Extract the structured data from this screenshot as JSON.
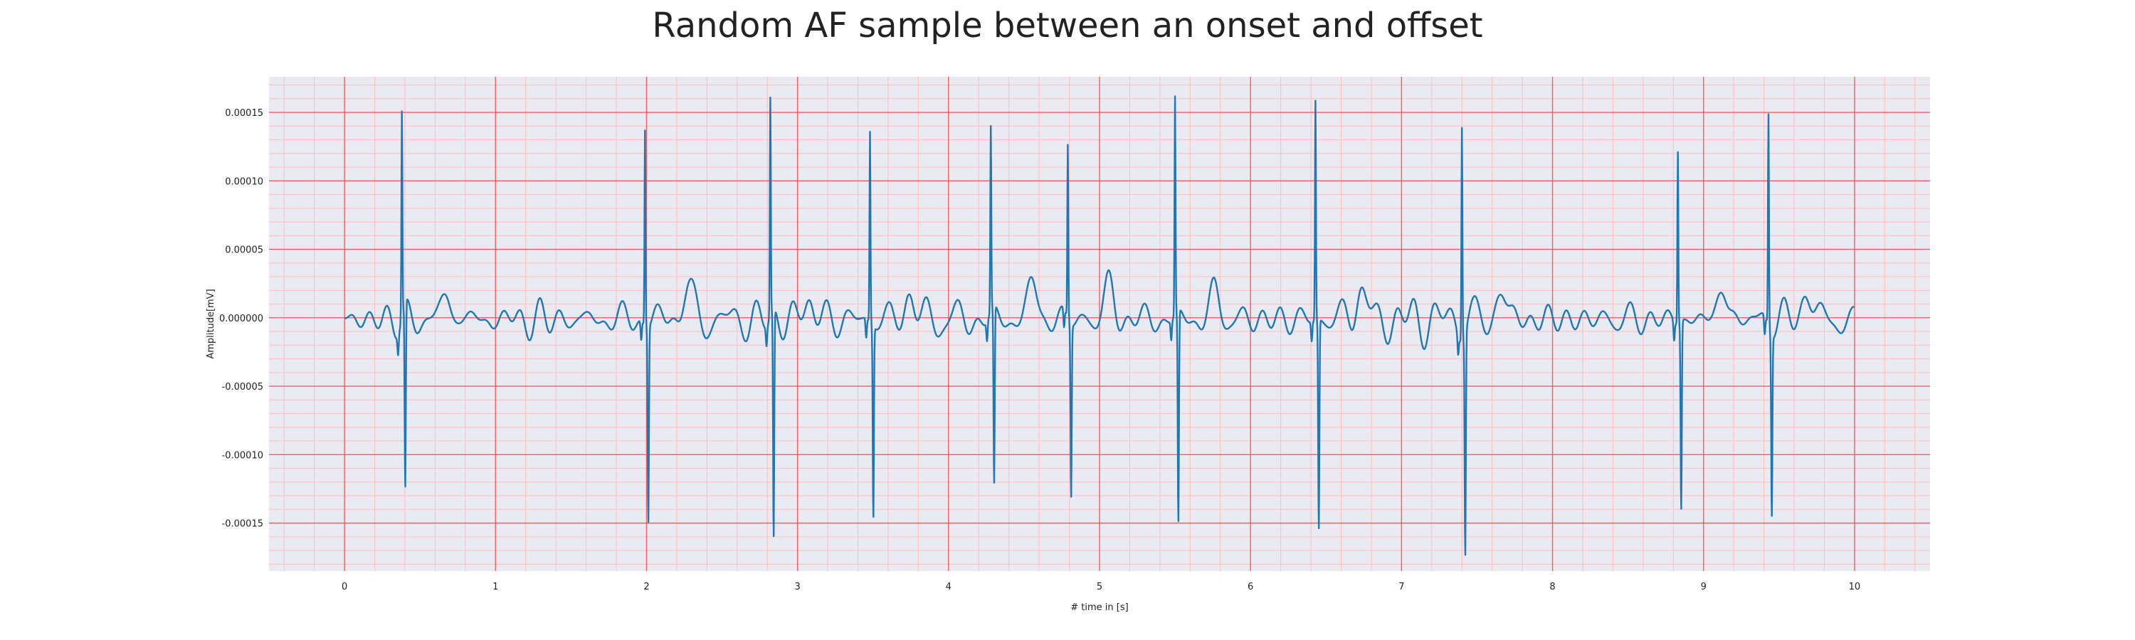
{
  "chart_data": {
    "type": "line",
    "title": "Random AF sample between an onset and offset",
    "xlabel": "# time in [s]",
    "ylabel": "Amplitude[mV]",
    "xlim": [
      -0.5,
      10.5
    ],
    "ylim": [
      -0.000185,
      0.000176
    ],
    "x_ticks": [
      0,
      1,
      2,
      3,
      4,
      5,
      6,
      7,
      8,
      9,
      10
    ],
    "x_tick_labels": [
      "0",
      "1",
      "2",
      "3",
      "4",
      "5",
      "6",
      "7",
      "8",
      "9",
      "10"
    ],
    "y_ticks": [
      0.00015,
      0.0001,
      5e-05,
      0,
      -5e-05,
      -0.0001,
      -0.00015
    ],
    "y_tick_labels": [
      "0.00015",
      "0.00010",
      "0.00005",
      "0.000000",
      "-0.00005",
      "-0.00010",
      "-0.00015"
    ],
    "grid": true,
    "grid_style": "ecg-paper (major and minor red gridlines)",
    "colors": {
      "line": "#1f77b4",
      "background": "#eaeaf2",
      "major_grid": "#ff5a5a",
      "minor_grid": "#ffbcbc"
    },
    "x_range": [
      0.0,
      10.0
    ],
    "beat_peaks": [
      {
        "t": 0.38,
        "max": 0.00015,
        "min": -0.000137
      },
      {
        "t": 1.99,
        "max": 0.000143,
        "min": -0.000143
      },
      {
        "t": 2.82,
        "max": 0.000159,
        "min": -0.000168
      },
      {
        "t": 3.48,
        "max": 0.000139,
        "min": -0.00014
      },
      {
        "t": 4.28,
        "max": 0.000135,
        "min": -0.000131
      },
      {
        "t": 4.79,
        "max": 0.000127,
        "min": -0.000126
      },
      {
        "t": 5.5,
        "max": 0.000159,
        "min": -0.000156
      },
      {
        "t": 6.43,
        "max": 0.00016,
        "min": -0.000154
      },
      {
        "t": 7.4,
        "max": 0.000157,
        "min": -0.000163
      },
      {
        "t": 8.83,
        "max": 0.000126,
        "min": -0.000138
      },
      {
        "t": 9.43,
        "max": 0.000155,
        "min": -0.000132
      }
    ],
    "baseline_range": [
      -2.9e-05,
      3.4e-05
    ],
    "series": [
      {
        "values_description": "single ECG trace"
      }
    ]
  }
}
